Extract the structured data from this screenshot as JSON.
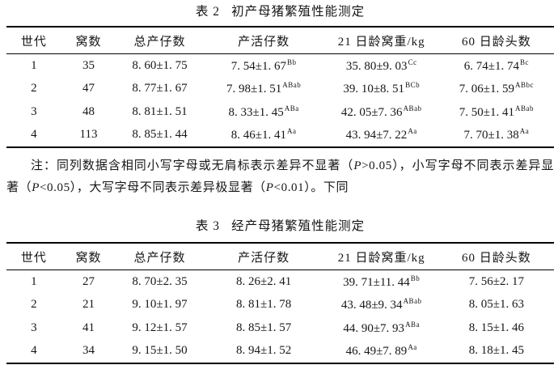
{
  "page": {
    "background_color": "#ffffff",
    "text_color": "#161616",
    "rule_color": "#000000"
  },
  "table2": {
    "caption_label": "表 2",
    "caption_text": "初产母猪繁殖性能测定",
    "headers": [
      "世代",
      "窝数",
      "总产仔数",
      "产活仔数",
      "21 日龄窝重/kg",
      "60 日龄头数"
    ],
    "rows": [
      [
        "1",
        "35",
        "8. 60±1. 75",
        "7. 54±1. 67^Bb",
        "35. 80±9. 03^Cc",
        "6. 74±1. 74^Bc"
      ],
      [
        "2",
        "47",
        "8. 77±1. 67",
        "7. 98±1. 51^ABab",
        "39. 10±8. 51^BCb",
        "7. 06±1. 59^ABbc"
      ],
      [
        "3",
        "48",
        "8. 81±1. 51",
        "8. 33±1. 45^ABa",
        "42. 05±7. 36^ABab",
        "7. 50±1. 41^ABab"
      ],
      [
        "4",
        "113",
        "8. 85±1. 44",
        "8. 46±1. 41^Aa",
        "43. 94±7. 22^Aa",
        "7. 70±1. 38^Aa"
      ]
    ]
  },
  "note": {
    "text": "注：同列数据含相同小写字母或无肩标表示差异不显著（P>0.05），小写字母不同表示差异显著（P<0.05），大写字母不同表示差异极显著（P<0.01）。下同"
  },
  "table3": {
    "caption_label": "表 3",
    "caption_text": "经产母猪繁殖性能测定",
    "headers": [
      "世代",
      "窝数",
      "总产仔数",
      "产活仔数",
      "21 日龄窝重/kg",
      "60 日龄头数"
    ],
    "rows": [
      [
        "1",
        "27",
        "8. 70±2. 35",
        "8. 26±2. 41",
        "39. 71±11. 44^Bb",
        "7. 56±2. 17"
      ],
      [
        "2",
        "21",
        "9. 10±1. 97",
        "8. 81±1. 78",
        "43. 48±9. 34^ABab",
        "8. 05±1. 63"
      ],
      [
        "3",
        "41",
        "9. 12±1. 57",
        "8. 85±1. 57",
        "44. 90±7. 93^ABa",
        "8. 15±1. 46"
      ],
      [
        "4",
        "34",
        "9. 15±1. 50",
        "8. 94±1. 52",
        "46. 49±7. 89^Aa",
        "8. 18±1. 45"
      ]
    ]
  }
}
